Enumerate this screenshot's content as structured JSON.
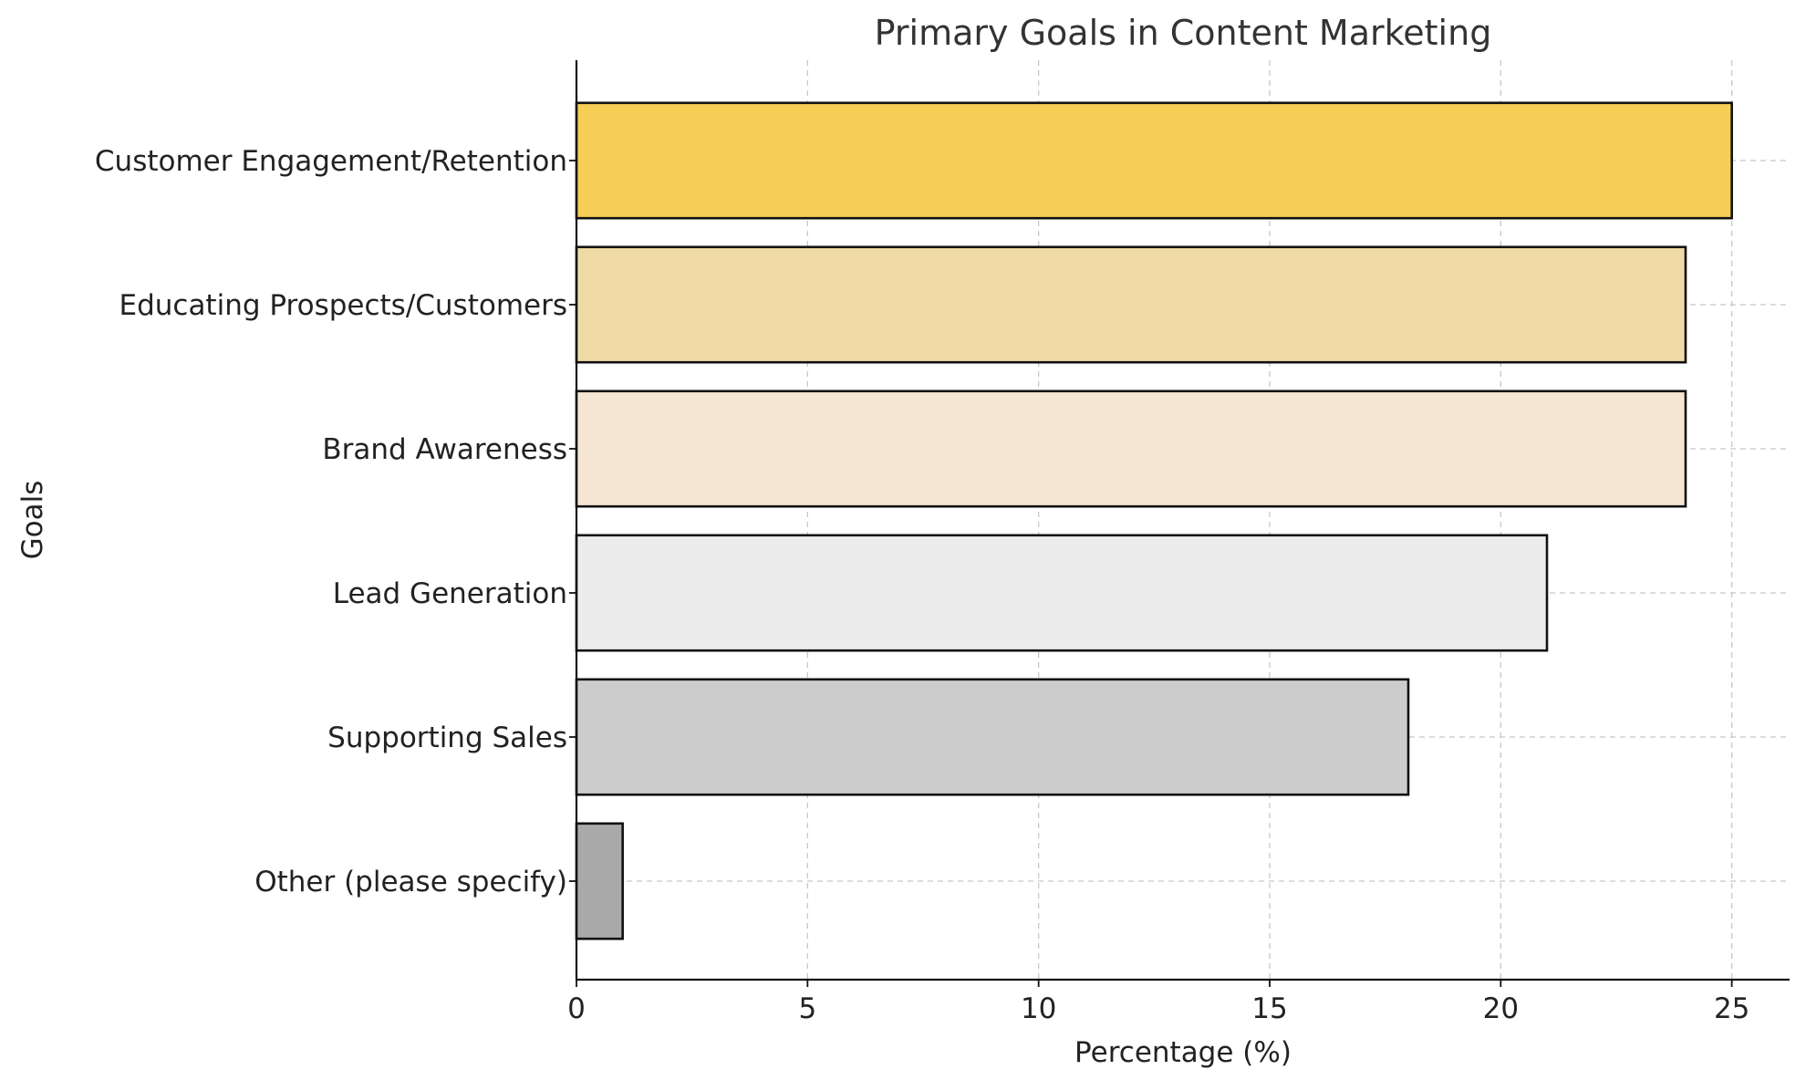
{
  "chart_data": {
    "type": "bar",
    "orientation": "horizontal",
    "title": "Primary Goals in Content Marketing",
    "xlabel": "Percentage (%)",
    "ylabel": "Goals",
    "categories": [
      "Customer Engagement/Retention",
      "Educating Prospects/Customers",
      "Brand Awareness",
      "Lead Generation",
      "Supporting Sales",
      "Other (please specify)"
    ],
    "values": [
      25,
      24,
      24,
      21,
      18,
      1
    ],
    "colors": [
      "#F6CD55",
      "#F0DBA6",
      "#F5E6D1",
      "#ECECEC",
      "#CCCCCC",
      "#A9A9A9"
    ],
    "xlim": [
      0,
      26.25
    ],
    "xticks": [
      0,
      5,
      10,
      15,
      20,
      25
    ],
    "grid": true,
    "legend": "none"
  }
}
